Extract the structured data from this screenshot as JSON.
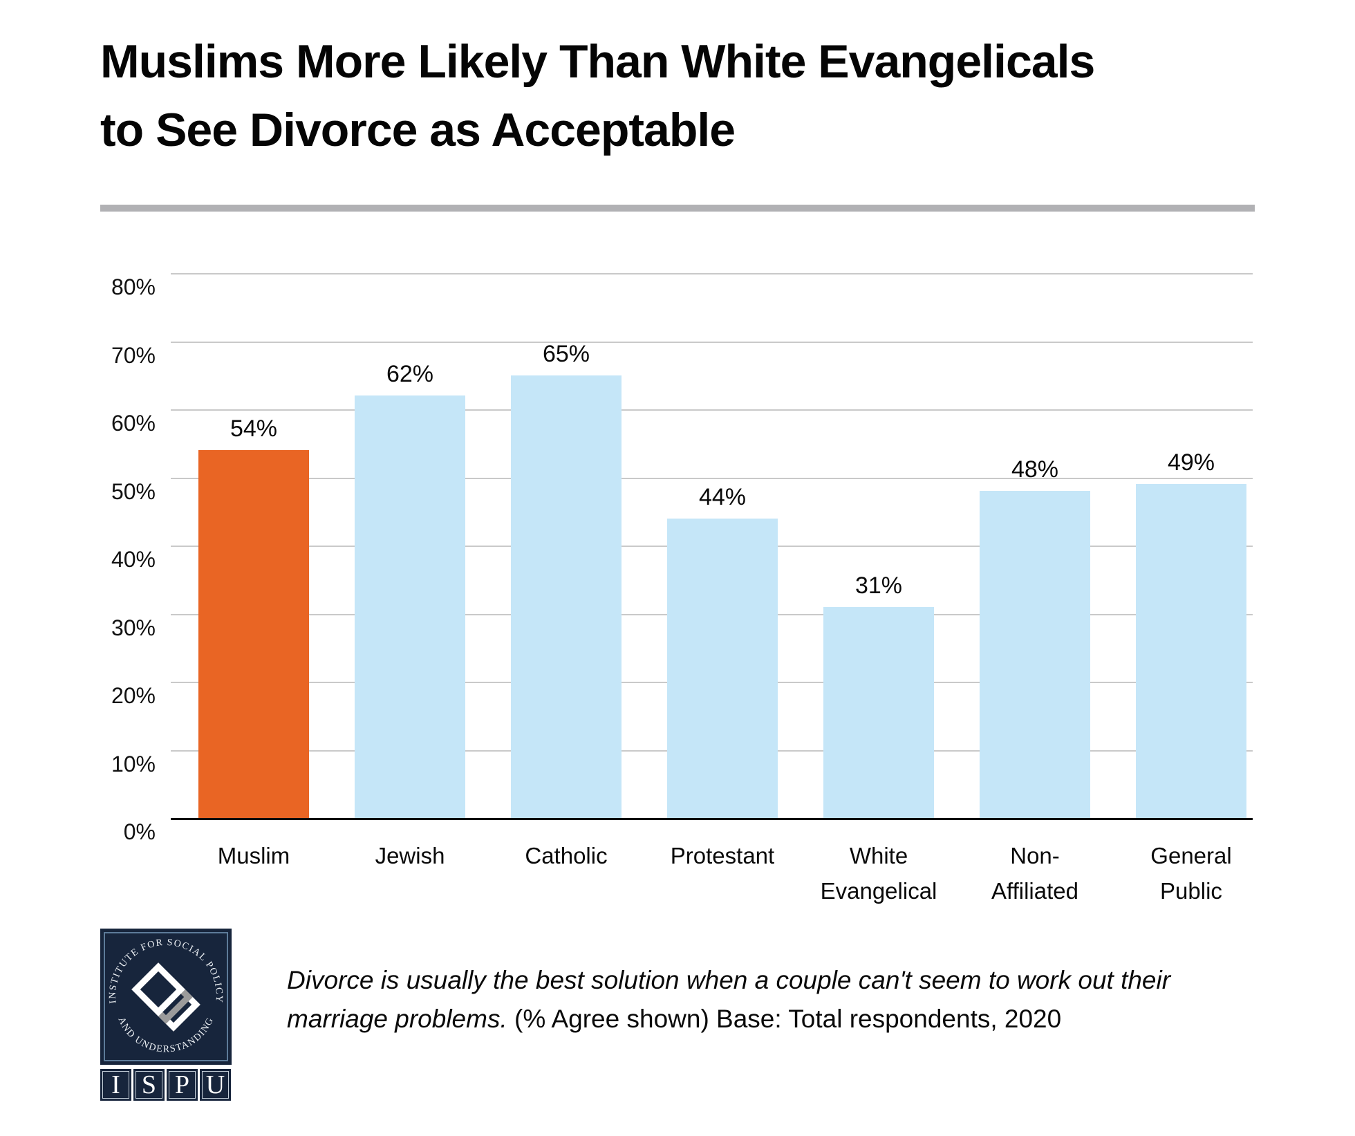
{
  "title": "Muslims More Likely Than White Evangelicals to See Divorce as Acceptable",
  "title_lines": [
    "Muslims More Likely Than White Evangelicals",
    "to See Divorce as Acceptable"
  ],
  "chart_data": {
    "type": "bar",
    "title": "Muslims More Likely Than White Evangelicals to See Divorce as Acceptable",
    "categories": [
      "Muslim",
      "Jewish",
      "Catholic",
      "Protestant",
      "White Evangelical",
      "Non-Affiliated",
      "General Public"
    ],
    "category_label_lines": [
      [
        "Muslim"
      ],
      [
        "Jewish"
      ],
      [
        "Catholic"
      ],
      [
        "Protestant"
      ],
      [
        "White",
        "Evangelical"
      ],
      [
        "Non-",
        "Affiliated"
      ],
      [
        "General",
        "Public"
      ]
    ],
    "values": [
      54,
      62,
      65,
      44,
      31,
      48,
      49
    ],
    "value_labels": [
      "54%",
      "62%",
      "65%",
      "44%",
      "31%",
      "48%",
      "49%"
    ],
    "xlabel": "",
    "ylabel": "",
    "ylim": [
      0,
      85
    ],
    "yticks": [
      0,
      10,
      20,
      30,
      40,
      50,
      60,
      70,
      80
    ],
    "ytick_labels": [
      "0%",
      "10%",
      "20%",
      "30%",
      "40%",
      "50%",
      "60%",
      "70%",
      "80%"
    ],
    "grid": true,
    "legend": false,
    "highlight_index": 0,
    "colors": {
      "highlight": "#E96524",
      "default": "#C5E6F8",
      "gridline": "#C9C9C9",
      "axis": "#0D0D0D"
    }
  },
  "divider_color": "#B1B1B4",
  "footnote": {
    "italic_text": "Divorce is usually the best solution when a couple can't seem to work out their marriage problems.",
    "regular_text": " (% Agree shown) Base: Total respondents, 2020"
  },
  "logo": {
    "ring_top": "INSTITUTE FOR SOCIAL POLICY",
    "ring_bottom": "AND UNDERSTANDING",
    "letters": [
      "I",
      "S",
      "P",
      "U"
    ],
    "navy": "#17253C",
    "gray": "#9B9B9B"
  }
}
